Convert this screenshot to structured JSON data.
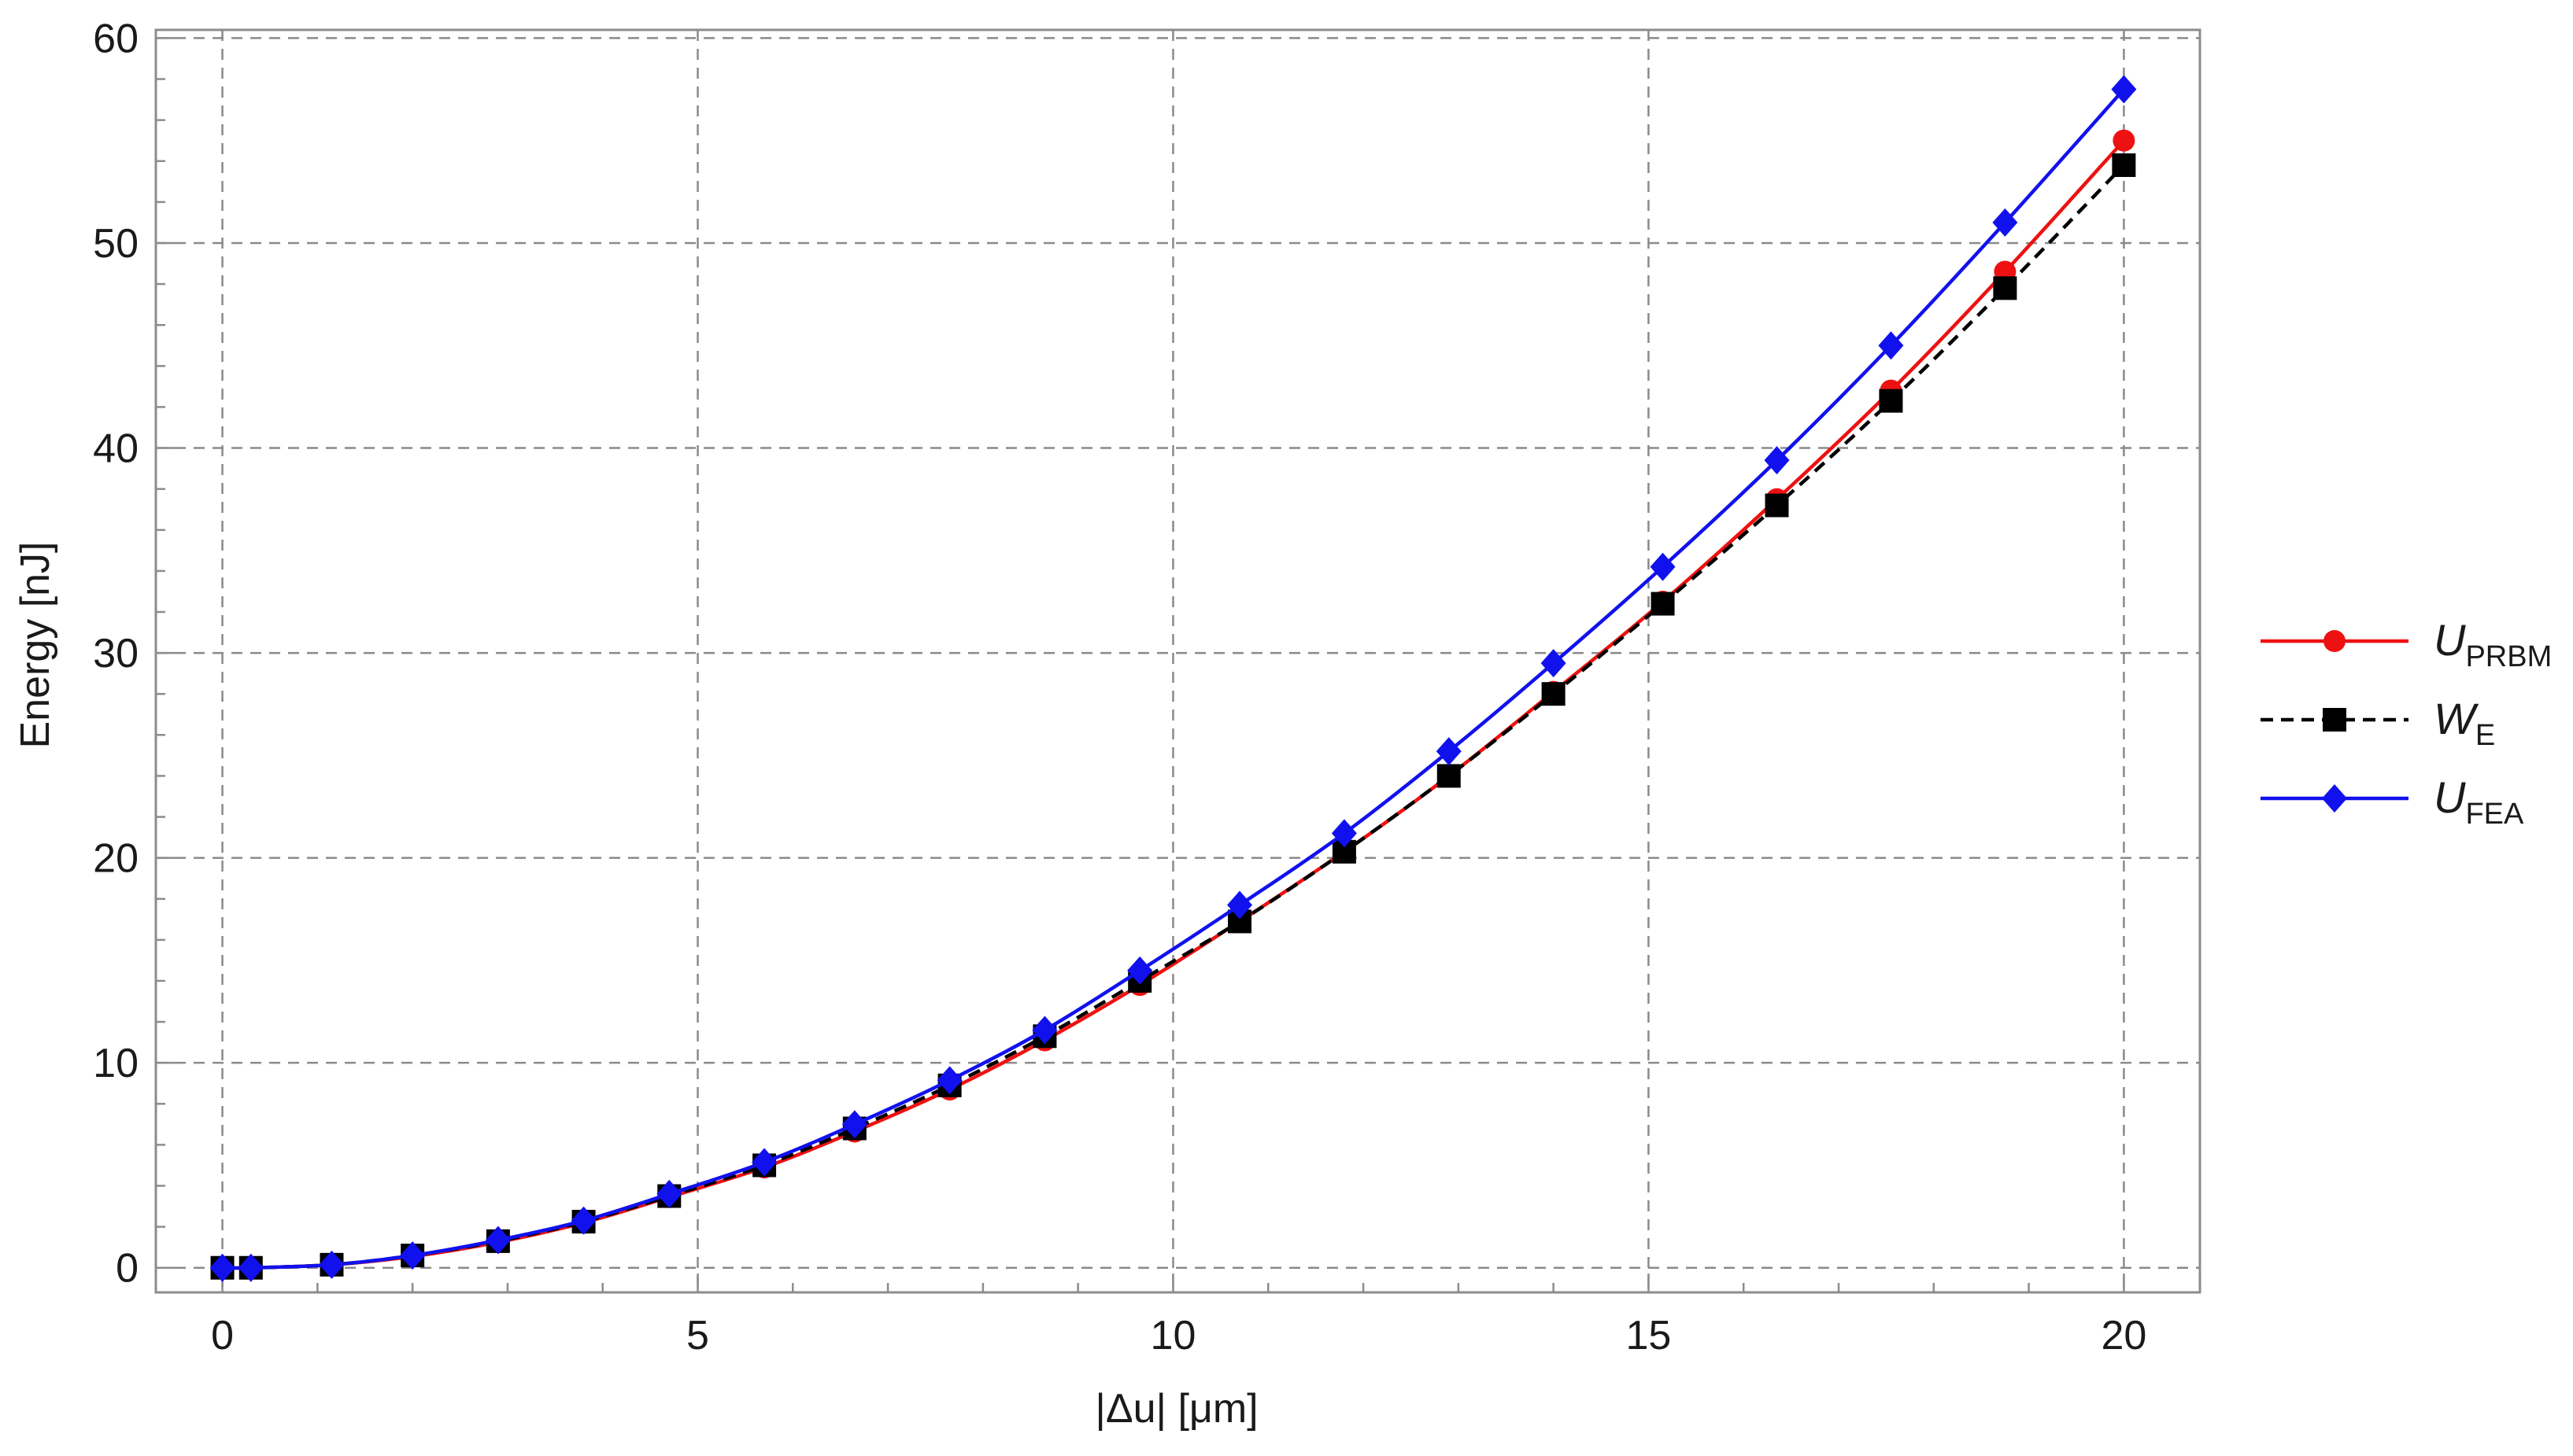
{
  "chart_data": {
    "type": "line",
    "xlabel": "|Δu| [μm]",
    "ylabel": "Energy [nJ]",
    "xlim": [
      -0.7,
      20.8
    ],
    "ylim": [
      -1.2,
      60.4
    ],
    "x_ticks": [
      "0",
      "5",
      "10",
      "15",
      "20"
    ],
    "y_ticks": [
      "0",
      "10",
      "20",
      "30",
      "40",
      "50",
      "60"
    ],
    "grid": true,
    "legend_position": "right",
    "x": [
      0.0,
      0.3,
      1.15,
      2.0,
      2.9,
      3.8,
      4.7,
      5.7,
      6.65,
      7.65,
      8.65,
      9.65,
      10.7,
      11.8,
      12.9,
      14.0,
      15.15,
      16.35,
      17.55,
      18.75,
      20.0
    ],
    "series": [
      {
        "name_main": "U",
        "name_sub": "PRBM",
        "color": "#ee1111",
        "line_style": "solid",
        "marker": "circle",
        "values": [
          0.0,
          0.0,
          0.15,
          0.55,
          1.25,
          2.2,
          3.45,
          4.9,
          6.65,
          8.7,
          11.1,
          13.8,
          16.9,
          20.3,
          24.0,
          28.1,
          32.5,
          37.5,
          42.8,
          48.6,
          55.0
        ]
      },
      {
        "name_main": "W",
        "name_sub": "E",
        "color": "#000000",
        "line_style": "dashed",
        "marker": "square",
        "values": [
          0.0,
          0.0,
          0.15,
          0.6,
          1.3,
          2.25,
          3.5,
          5.0,
          6.8,
          8.9,
          11.3,
          14.0,
          16.9,
          20.3,
          24.0,
          28.0,
          32.4,
          37.2,
          42.3,
          47.8,
          53.8
        ]
      },
      {
        "name_main": "U",
        "name_sub": "FEA",
        "color": "#1111ee",
        "line_style": "solid",
        "marker": "diamond",
        "values": [
          0.0,
          0.0,
          0.15,
          0.6,
          1.35,
          2.3,
          3.6,
          5.15,
          7.0,
          9.15,
          11.6,
          14.5,
          17.7,
          21.2,
          25.2,
          29.5,
          34.2,
          39.4,
          45.0,
          51.0,
          57.5
        ]
      }
    ]
  }
}
